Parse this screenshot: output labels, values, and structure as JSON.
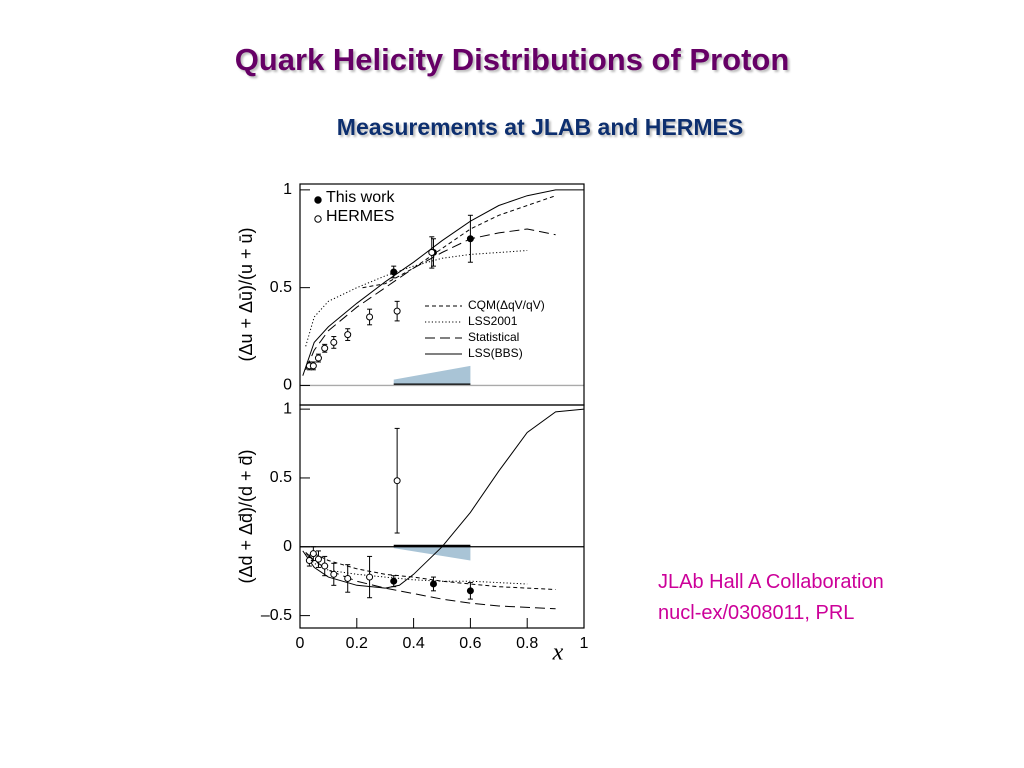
{
  "title": "Quark Helicity Distributions of Proton",
  "subtitle": "Measurements at JLAB and HERMES",
  "annotation": [
    "JLAb Hall A Collaboration",
    "nucl-ex/0308011, PRL"
  ],
  "chart_data": [
    {
      "type": "scatter",
      "ylabel": "(Δu + Δū)/(u + ū)",
      "xlim": [
        0,
        1
      ],
      "ylim": [
        -0.1,
        1.03
      ],
      "yticks": [
        0,
        0.5,
        1
      ],
      "zero_line": "#aaaaaa",
      "legend": "upper left",
      "series": [
        {
          "name": "This work",
          "marker": "filled",
          "color": "#000000",
          "x": [
            0.33,
            0.47,
            0.6
          ],
          "values": [
            0.58,
            0.68,
            0.75
          ],
          "errors": [
            0.03,
            0.07,
            0.12
          ]
        },
        {
          "name": "HERMES",
          "marker": "open",
          "color": "#000000",
          "x": [
            0.033,
            0.047,
            0.065,
            0.087,
            0.119,
            0.168,
            0.245,
            0.342,
            0.464
          ],
          "values": [
            0.1,
            0.1,
            0.14,
            0.19,
            0.22,
            0.26,
            0.35,
            0.38,
            0.68
          ],
          "errors": [
            0.02,
            0.02,
            0.02,
            0.02,
            0.03,
            0.03,
            0.04,
            0.05,
            0.08
          ]
        }
      ],
      "curves": [
        {
          "name": "CQM(ΔqV/qV)",
          "style": "short-dash",
          "x": [
            0.22,
            0.3,
            0.4,
            0.5,
            0.6,
            0.7,
            0.8,
            0.9
          ],
          "values": [
            0.5,
            0.52,
            0.6,
            0.7,
            0.8,
            0.87,
            0.92,
            0.97
          ]
        },
        {
          "name": "LSS2001",
          "style": "dotted",
          "x": [
            0.02,
            0.05,
            0.1,
            0.2,
            0.3,
            0.4,
            0.5,
            0.6,
            0.7,
            0.8
          ],
          "values": [
            0.2,
            0.35,
            0.43,
            0.5,
            0.56,
            0.61,
            0.65,
            0.67,
            0.68,
            0.69
          ]
        },
        {
          "name": "Statistical",
          "style": "long-dash",
          "x": [
            0.02,
            0.05,
            0.1,
            0.2,
            0.3,
            0.4,
            0.5,
            0.6,
            0.7,
            0.8,
            0.9
          ],
          "values": [
            0.08,
            0.18,
            0.28,
            0.4,
            0.5,
            0.6,
            0.68,
            0.75,
            0.78,
            0.8,
            0.77
          ]
        },
        {
          "name": "LSS(BBS)",
          "style": "solid",
          "x": [
            0.01,
            0.05,
            0.1,
            0.2,
            0.3,
            0.4,
            0.5,
            0.6,
            0.7,
            0.8,
            0.9,
            1.0
          ],
          "values": [
            0.05,
            0.22,
            0.3,
            0.42,
            0.53,
            0.63,
            0.74,
            0.84,
            0.92,
            0.97,
            1.0,
            1.0
          ]
        }
      ],
      "systematic": {
        "color": "#a9c4d6",
        "x": [
          0.33,
          0.6
        ],
        "lower": [
          0,
          0
        ],
        "upper": [
          0.03,
          0.1
        ]
      }
    },
    {
      "type": "scatter",
      "ylabel": "(Δd + Δd̄)/(d + d̄)",
      "xlabel": "x",
      "xlim": [
        0,
        1
      ],
      "ylim": [
        -0.59,
        1.03
      ],
      "yticks": [
        {
          "value": -0.5,
          "label": "–0.5"
        },
        0,
        0.5,
        1
      ],
      "xticks": [
        0,
        0.2,
        0.4,
        0.6,
        0.8,
        1
      ],
      "zero_line": "#000000",
      "series": [
        {
          "marker": "filled",
          "color": "#000000",
          "x": [
            0.33,
            0.47,
            0.6
          ],
          "values": [
            -0.25,
            -0.27,
            -0.32
          ],
          "errors": [
            0.04,
            0.05,
            0.06
          ]
        },
        {
          "marker": "open",
          "color": "#000000",
          "x": [
            0.033,
            0.047,
            0.065,
            0.087,
            0.119,
            0.168,
            0.245,
            0.342
          ],
          "values": [
            -0.1,
            -0.05,
            -0.09,
            -0.14,
            -0.2,
            -0.23,
            -0.22,
            0.48
          ],
          "errors": [
            0.04,
            0.05,
            0.06,
            0.07,
            0.08,
            0.1,
            0.15,
            0.38
          ]
        }
      ],
      "curves": [
        {
          "style": "short-dash",
          "x": [
            0.05,
            0.1,
            0.2,
            0.3,
            0.4,
            0.5,
            0.6,
            0.7,
            0.8,
            0.9
          ],
          "values": [
            -0.05,
            -0.1,
            -0.16,
            -0.2,
            -0.22,
            -0.25,
            -0.27,
            -0.29,
            -0.3,
            -0.31
          ]
        },
        {
          "style": "dotted",
          "x": [
            0.02,
            0.05,
            0.1,
            0.2,
            0.3,
            0.4,
            0.5,
            0.6,
            0.7,
            0.8
          ],
          "values": [
            -0.05,
            -0.12,
            -0.17,
            -0.2,
            -0.22,
            -0.24,
            -0.25,
            -0.25,
            -0.26,
            -0.27
          ]
        },
        {
          "style": "long-dash",
          "x": [
            0.02,
            0.05,
            0.1,
            0.2,
            0.3,
            0.4,
            0.5,
            0.6,
            0.7,
            0.8,
            0.9
          ],
          "values": [
            -0.04,
            -0.1,
            -0.17,
            -0.25,
            -0.3,
            -0.34,
            -0.38,
            -0.41,
            -0.43,
            -0.44,
            -0.45
          ]
        },
        {
          "style": "solid",
          "x": [
            0.01,
            0.05,
            0.1,
            0.2,
            0.3,
            0.35,
            0.4,
            0.5,
            0.6,
            0.7,
            0.8,
            0.9,
            1.0
          ],
          "values": [
            -0.03,
            -0.15,
            -0.22,
            -0.28,
            -0.3,
            -0.28,
            -0.2,
            0.0,
            0.25,
            0.55,
            0.83,
            0.98,
            1.0
          ]
        }
      ],
      "systematic": {
        "color": "#a9c4d6",
        "x": [
          0.33,
          0.6
        ],
        "lower": [
          -0.01,
          -0.1
        ],
        "upper": [
          0,
          0
        ]
      }
    }
  ]
}
